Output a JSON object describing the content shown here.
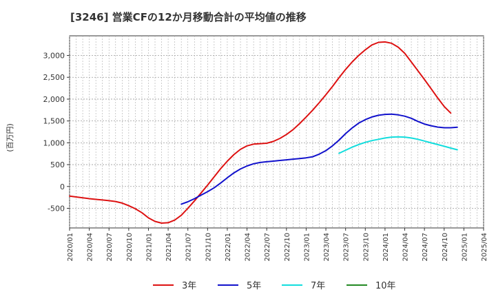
{
  "chart_data": {
    "type": "line",
    "title": "[3246]  営業CFの12か月移動合計の平均値の推移",
    "ylabel": "(百万円)",
    "xlabel": "",
    "ylim": [
      -950,
      3450
    ],
    "xlim": [
      "2020-01",
      "2025-04"
    ],
    "yticks": [
      -500,
      0,
      500,
      1000,
      1500,
      2000,
      2500,
      3000
    ],
    "ytick_labels": [
      "-500",
      "0",
      "500",
      "1,000",
      "1,500",
      "2,000",
      "2,500",
      "3,000"
    ],
    "xticks": [
      "2020/01",
      "2020/04",
      "2020/07",
      "2020/10",
      "2021/01",
      "2021/04",
      "2021/07",
      "2021/10",
      "2022/01",
      "2022/04",
      "2022/07",
      "2022/10",
      "2023/01",
      "2023/04",
      "2023/07",
      "2023/10",
      "2024/01",
      "2024/04",
      "2024/07",
      "2024/10",
      "2025/01",
      "2025/04"
    ],
    "grid": true,
    "legend_position": "bottom",
    "series": [
      {
        "name": "3年",
        "color": "#dd1111",
        "points": [
          [
            "2020-01",
            -220
          ],
          [
            "2020-02",
            -240
          ],
          [
            "2020-03",
            -260
          ],
          [
            "2020-04",
            -280
          ],
          [
            "2020-05",
            -295
          ],
          [
            "2020-06",
            -310
          ],
          [
            "2020-07",
            -325
          ],
          [
            "2020-08",
            -345
          ],
          [
            "2020-09",
            -380
          ],
          [
            "2020-10",
            -440
          ],
          [
            "2020-11",
            -510
          ],
          [
            "2020-12",
            -600
          ],
          [
            "2021-01",
            -720
          ],
          [
            "2021-02",
            -800
          ],
          [
            "2021-03",
            -840
          ],
          [
            "2021-04",
            -830
          ],
          [
            "2021-05",
            -770
          ],
          [
            "2021-06",
            -660
          ],
          [
            "2021-07",
            -500
          ],
          [
            "2021-08",
            -330
          ],
          [
            "2021-09",
            -150
          ],
          [
            "2021-10",
            30
          ],
          [
            "2021-11",
            220
          ],
          [
            "2021-12",
            410
          ],
          [
            "2022-01",
            580
          ],
          [
            "2022-02",
            730
          ],
          [
            "2022-03",
            850
          ],
          [
            "2022-04",
            930
          ],
          [
            "2022-05",
            970
          ],
          [
            "2022-06",
            980
          ],
          [
            "2022-07",
            990
          ],
          [
            "2022-08",
            1030
          ],
          [
            "2022-09",
            1100
          ],
          [
            "2022-10",
            1190
          ],
          [
            "2022-11",
            1300
          ],
          [
            "2022-12",
            1440
          ],
          [
            "2023-01",
            1590
          ],
          [
            "2023-02",
            1750
          ],
          [
            "2023-03",
            1920
          ],
          [
            "2023-04",
            2100
          ],
          [
            "2023-05",
            2290
          ],
          [
            "2023-06",
            2490
          ],
          [
            "2023-07",
            2680
          ],
          [
            "2023-08",
            2850
          ],
          [
            "2023-09",
            3000
          ],
          [
            "2023-10",
            3130
          ],
          [
            "2023-11",
            3240
          ],
          [
            "2023-12",
            3300
          ],
          [
            "2024-01",
            3310
          ],
          [
            "2024-02",
            3280
          ],
          [
            "2024-03",
            3190
          ],
          [
            "2024-04",
            3050
          ],
          [
            "2024-05",
            2850
          ],
          [
            "2024-06",
            2650
          ],
          [
            "2024-07",
            2450
          ],
          [
            "2024-08",
            2240
          ],
          [
            "2024-09",
            2030
          ],
          [
            "2024-10",
            1830
          ],
          [
            "2024-11",
            1680
          ]
        ]
      },
      {
        "name": "5年",
        "color": "#1111cc",
        "points": [
          [
            "2021-06",
            -405
          ],
          [
            "2021-07",
            -350
          ],
          [
            "2021-08",
            -280
          ],
          [
            "2021-09",
            -200
          ],
          [
            "2021-10",
            -120
          ],
          [
            "2021-11",
            -30
          ],
          [
            "2021-12",
            80
          ],
          [
            "2022-01",
            200
          ],
          [
            "2022-02",
            310
          ],
          [
            "2022-03",
            400
          ],
          [
            "2022-04",
            470
          ],
          [
            "2022-05",
            520
          ],
          [
            "2022-06",
            550
          ],
          [
            "2022-07",
            565
          ],
          [
            "2022-08",
            580
          ],
          [
            "2022-09",
            595
          ],
          [
            "2022-10",
            610
          ],
          [
            "2022-11",
            625
          ],
          [
            "2022-12",
            640
          ],
          [
            "2023-01",
            655
          ],
          [
            "2023-02",
            680
          ],
          [
            "2023-03",
            740
          ],
          [
            "2023-04",
            820
          ],
          [
            "2023-05",
            930
          ],
          [
            "2023-06",
            1060
          ],
          [
            "2023-07",
            1210
          ],
          [
            "2023-08",
            1340
          ],
          [
            "2023-09",
            1450
          ],
          [
            "2023-10",
            1530
          ],
          [
            "2023-11",
            1590
          ],
          [
            "2023-12",
            1630
          ],
          [
            "2024-01",
            1650
          ],
          [
            "2024-02",
            1655
          ],
          [
            "2024-03",
            1640
          ],
          [
            "2024-04",
            1610
          ],
          [
            "2024-05",
            1560
          ],
          [
            "2024-06",
            1490
          ],
          [
            "2024-07",
            1430
          ],
          [
            "2024-08",
            1390
          ],
          [
            "2024-09",
            1360
          ],
          [
            "2024-10",
            1345
          ],
          [
            "2024-11",
            1345
          ],
          [
            "2024-12",
            1355
          ]
        ]
      },
      {
        "name": "7年",
        "color": "#11dddd",
        "points": [
          [
            "2023-06",
            760
          ],
          [
            "2023-07",
            830
          ],
          [
            "2023-08",
            900
          ],
          [
            "2023-09",
            960
          ],
          [
            "2023-10",
            1010
          ],
          [
            "2023-11",
            1050
          ],
          [
            "2023-12",
            1080
          ],
          [
            "2024-01",
            1110
          ],
          [
            "2024-02",
            1130
          ],
          [
            "2024-03",
            1135
          ],
          [
            "2024-04",
            1130
          ],
          [
            "2024-05",
            1110
          ],
          [
            "2024-06",
            1080
          ],
          [
            "2024-07",
            1040
          ],
          [
            "2024-08",
            1000
          ],
          [
            "2024-09",
            960
          ],
          [
            "2024-10",
            920
          ],
          [
            "2024-11",
            880
          ],
          [
            "2024-12",
            840
          ]
        ]
      },
      {
        "name": "10年",
        "color": "#228822",
        "points": []
      }
    ]
  }
}
